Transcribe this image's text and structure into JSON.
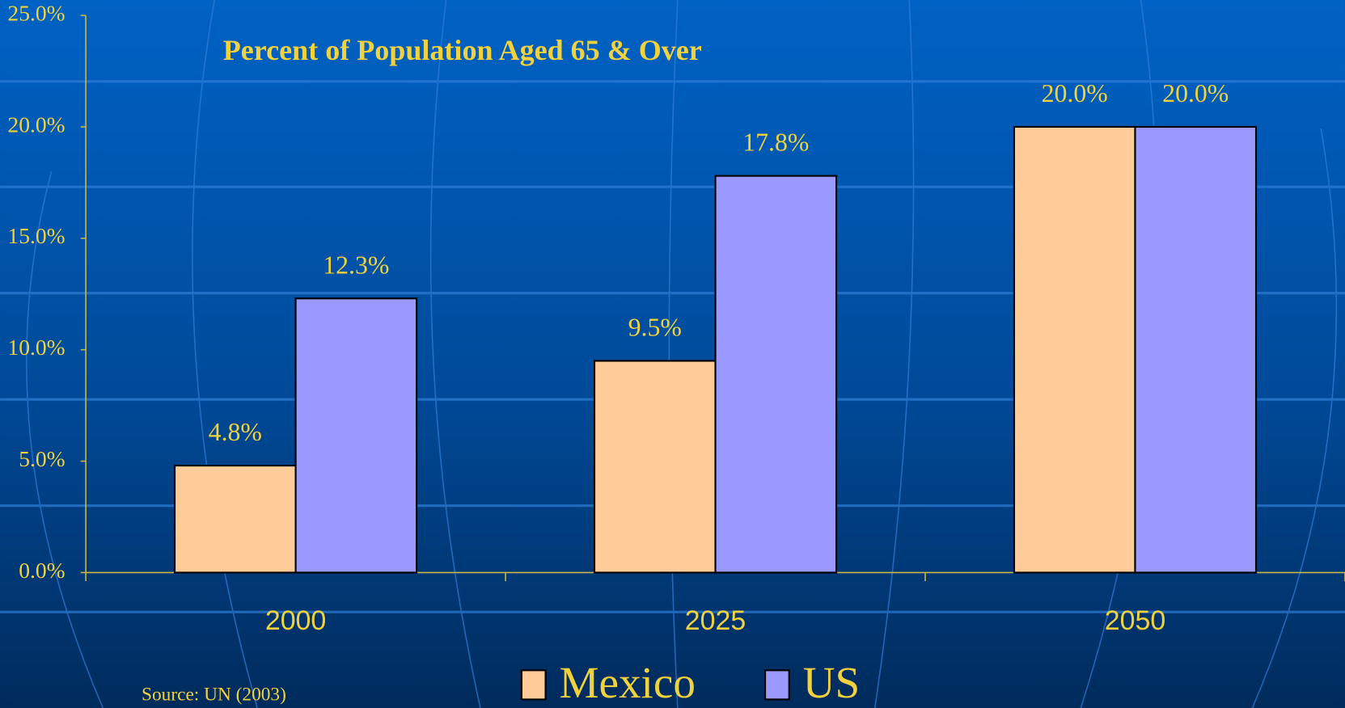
{
  "chart_data": {
    "type": "bar",
    "title": "Percent of Population Aged 65 & Over",
    "source": "Source: UN (2003)",
    "categories": [
      "2000",
      "2025",
      "2050"
    ],
    "series": [
      {
        "name": "Mexico",
        "color": "#ffcc99",
        "values": [
          4.8,
          9.5,
          20.0
        ],
        "value_labels": [
          "4.8%",
          "9.5%",
          "20.0%"
        ]
      },
      {
        "name": "US",
        "color": "#9999ff",
        "values": [
          12.3,
          17.8,
          20.0
        ],
        "value_labels": [
          "12.3%",
          "17.8%",
          "20.0%"
        ]
      }
    ],
    "ylim": [
      0,
      25
    ],
    "yticks": [
      {
        "value": 0,
        "label": "0.0%"
      },
      {
        "value": 5,
        "label": "5.0%"
      },
      {
        "value": 10,
        "label": "10.0%"
      },
      {
        "value": 15,
        "label": "15.0%"
      },
      {
        "value": 20,
        "label": "20.0%"
      },
      {
        "value": 25,
        "label": "25.0%"
      }
    ],
    "legend": "bottom"
  }
}
